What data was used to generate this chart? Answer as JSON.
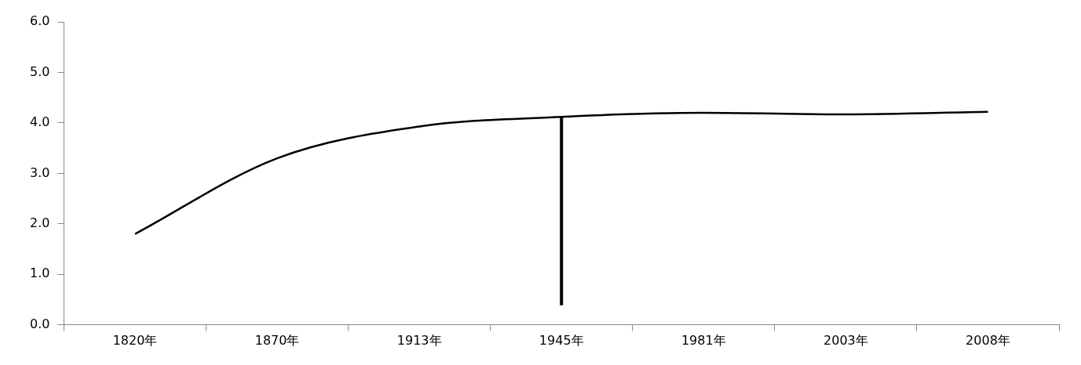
{
  "chart_data": {
    "type": "line",
    "categories": [
      "1820年",
      "1870年",
      "1913年",
      "1945年",
      "1981年",
      "2003年",
      "2008年"
    ],
    "series": [
      {
        "color": "#000000",
        "values": [
          1.8,
          3.3,
          3.93,
          4.12,
          4.2,
          4.17,
          4.22
        ]
      }
    ],
    "ylim": [
      0,
      6
    ],
    "yticks": [
      {
        "value": 0,
        "label": "0.0"
      },
      {
        "value": 1,
        "label": "1.0"
      },
      {
        "value": 2,
        "label": "2.0"
      },
      {
        "value": 3,
        "label": "3.0"
      },
      {
        "value": 4,
        "label": "4.0"
      },
      {
        "value": 5,
        "label": "5.0"
      },
      {
        "value": 6,
        "label": "6.0"
      }
    ],
    "ref_lines": [
      {
        "axis": "x",
        "value": "1945年",
        "color": "#000000"
      }
    ],
    "grid": false,
    "legend": false,
    "marker": "none",
    "line_style": "solid"
  }
}
